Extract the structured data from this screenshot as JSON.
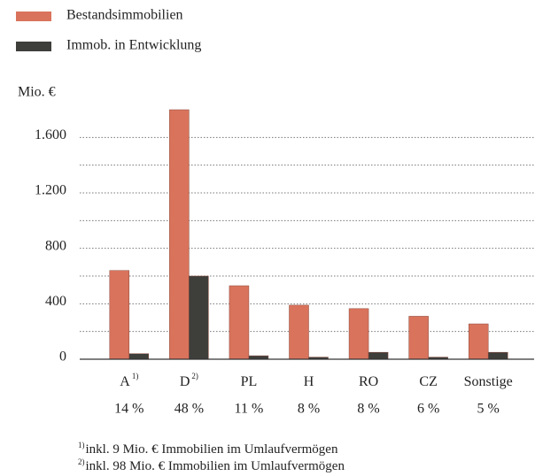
{
  "chart_data": {
    "type": "bar",
    "y_label": "Mio. €",
    "categories": [
      "A",
      "D",
      "PL",
      "H",
      "RO",
      "CZ",
      "Sonstige"
    ],
    "category_notes": [
      "1)",
      "2)",
      null,
      null,
      null,
      null,
      null
    ],
    "share_labels": [
      "14 %",
      "48 %",
      "11 %",
      "8 %",
      "8 %",
      "6 %",
      "5 %"
    ],
    "series": [
      {
        "name": "Bestandsimmobilien",
        "color": "#d9735c",
        "values": [
          640,
          1800,
          530,
          390,
          365,
          310,
          255
        ]
      },
      {
        "name": "Immob. in Entwicklung",
        "color": "#3e3e3b",
        "values": [
          40,
          600,
          25,
          15,
          50,
          15,
          50
        ]
      }
    ],
    "ylim": [
      0,
      1800
    ],
    "yticks": [
      0,
      400,
      800,
      {
        "value": 1200,
        "label": "1.200"
      },
      {
        "value": 1600,
        "label": "1.600"
      }
    ],
    "minor_yticks": [
      200,
      600,
      1000,
      1400
    ],
    "grid": true,
    "footnotes": [
      {
        "mark": "1)",
        "text": "inkl. 9 Mio. € Immobilien im Umlaufvermögen"
      },
      {
        "mark": "2)",
        "text": "inkl. 98 Mio. € Immobilien im Umlaufvermögen"
      }
    ]
  }
}
